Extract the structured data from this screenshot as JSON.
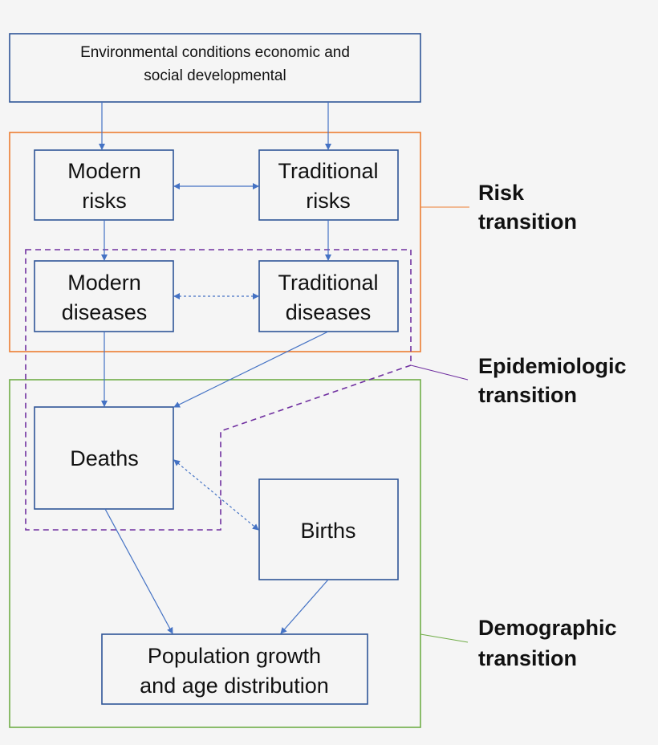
{
  "boxes": {
    "environment": [
      "Environmental conditions economic and",
      "social developmental"
    ],
    "modern_risks": [
      "Modern",
      "risks"
    ],
    "traditional_risks": [
      "Traditional",
      "risks"
    ],
    "modern_diseases": [
      "Modern",
      "diseases"
    ],
    "traditional_diseases": [
      "Traditional",
      "diseases"
    ],
    "deaths": "Deaths",
    "births": "Births",
    "population": [
      "Population growth",
      "and age distribution"
    ]
  },
  "transitions": {
    "risk": [
      "Risk",
      "transition"
    ],
    "epidemiologic": [
      "Epidemiologic",
      "transition"
    ],
    "demographic": [
      "Demographic",
      "transition"
    ]
  },
  "colors": {
    "risk": "#ED7D31",
    "epidemiologic": "#7030A0",
    "demographic": "#70AD47",
    "arrows": "#4472C4",
    "box_border": "#2F5597"
  }
}
